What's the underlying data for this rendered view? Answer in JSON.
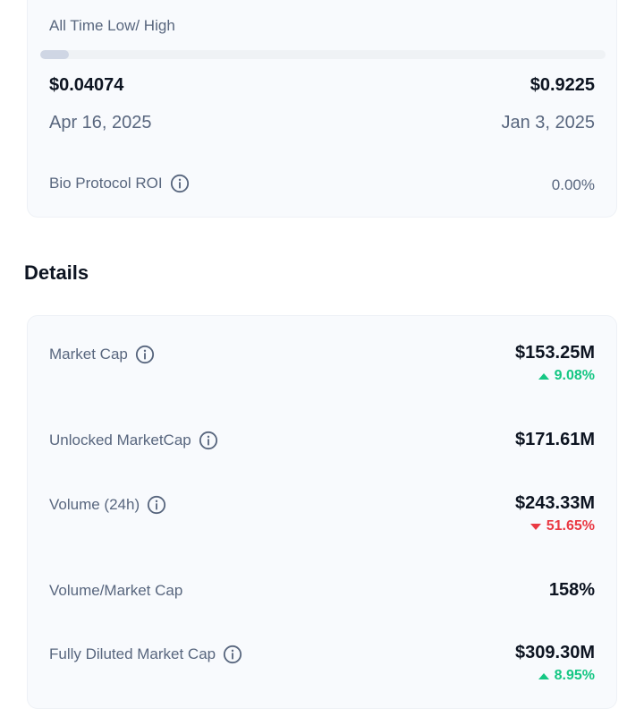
{
  "ath_atl": {
    "label": "All Time Low/ High",
    "progress_fraction": 0.05,
    "low_price": "$0.04074",
    "high_price": "$0.9225",
    "low_date": "Apr 16, 2025",
    "high_date": "Jan 3, 2025"
  },
  "roi": {
    "label": "Bio Protocol ROI",
    "value": "0.00%"
  },
  "details": {
    "title": "Details",
    "market_cap": {
      "label": "Market Cap",
      "value": "$153.25M",
      "change": "9.08%",
      "direction": "up"
    },
    "unlocked_market_cap": {
      "label": "Unlocked MarketCap",
      "value": "$171.61M"
    },
    "volume_24h": {
      "label": "Volume (24h)",
      "value": "$243.33M",
      "change": "51.65%",
      "direction": "down"
    },
    "volume_market_cap": {
      "label": "Volume/Market Cap",
      "value": "158%"
    },
    "fdv": {
      "label": "Fully Diluted Market Cap",
      "value": "$309.30M",
      "change": "8.95%",
      "direction": "up"
    }
  },
  "colors": {
    "positive": "#16c784",
    "negative": "#ea3943",
    "label": "#58667e",
    "card_bg": "#f8fafd"
  },
  "icons": {
    "info": "info-circle-icon",
    "arrow_up": "triangle-up-icon",
    "arrow_down": "triangle-down-icon"
  }
}
